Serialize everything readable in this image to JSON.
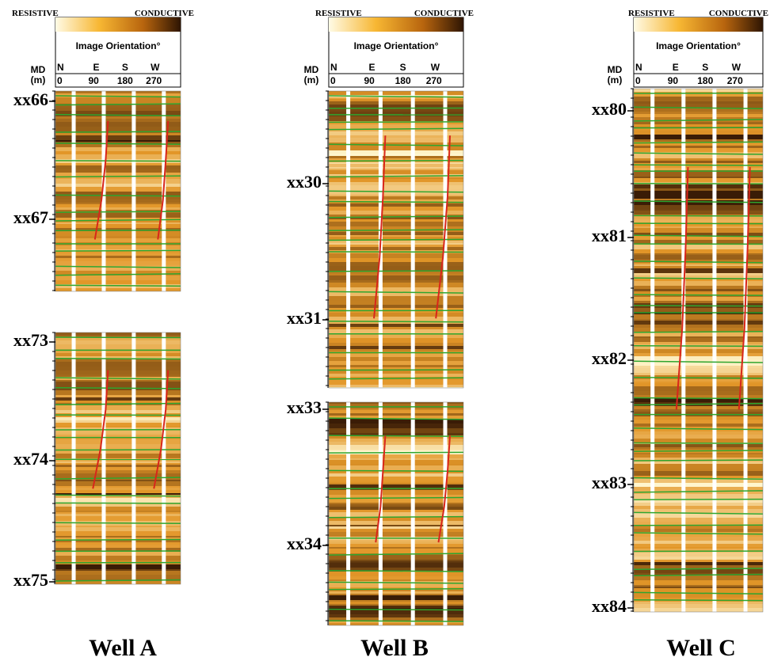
{
  "wells": [
    {
      "name": "Well A",
      "header": {
        "resistive": "RESISTIVE",
        "conductive": "CONDUCTIVE",
        "orientation_title": "Image Orientation°",
        "md_label": "MD",
        "md_unit": "(m)",
        "directions": [
          "N",
          "E",
          "S",
          "W"
        ],
        "degrees": [
          "0",
          "90",
          "180",
          "270"
        ]
      },
      "sections": [
        {
          "depth_labels": [
            "xx66",
            "xx67"
          ]
        },
        {
          "depth_labels": [
            "xx73",
            "xx74",
            "xx75"
          ]
        }
      ]
    },
    {
      "name": "Well B",
      "header": {
        "resistive": "RESISTIVE",
        "conductive": "CONDUCTIVE",
        "orientation_title": "Image Orientation°",
        "md_label": "MD",
        "md_unit": "(m)",
        "directions": [
          "N",
          "E",
          "S",
          "W"
        ],
        "degrees": [
          "0",
          "90",
          "180",
          "270"
        ]
      },
      "sections": [
        {
          "depth_labels": [
            "xx30",
            "xx31"
          ]
        },
        {
          "depth_labels": [
            "xx33",
            "xx34"
          ]
        }
      ]
    },
    {
      "name": "Well C",
      "header": {
        "resistive": "RESISTIVE",
        "conductive": "CONDUCTIVE",
        "orientation_title": "Image Orientation°",
        "md_label": "MD",
        "md_unit": "(m)",
        "directions": [
          "N",
          "E",
          "S",
          "W"
        ],
        "degrees": [
          "0",
          "90",
          "180",
          "270"
        ]
      },
      "sections": [
        {
          "depth_labels": [
            "xx80",
            "xx81",
            "xx82",
            "xx83",
            "xx84"
          ]
        }
      ]
    }
  ]
}
